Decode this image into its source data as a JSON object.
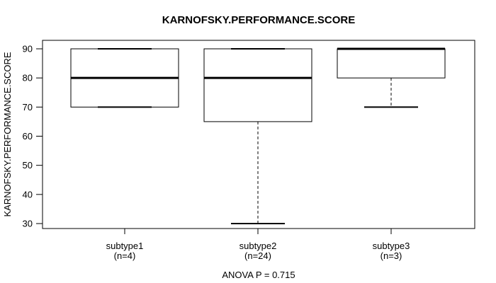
{
  "chart_data": {
    "type": "boxplot",
    "title": "KARNOFSKY.PERFORMANCE.SCORE",
    "ylabel": "KARNOFSKY.PERFORMANCE.SCORE",
    "xlabel": "",
    "ylim": [
      30,
      90
    ],
    "yticks": [
      90,
      80,
      70,
      60,
      50,
      40,
      30
    ],
    "ytick_labels": [
      "90",
      "80",
      "70",
      "60",
      "50",
      "40",
      "30"
    ],
    "grid": false,
    "frame": true,
    "legend_position": "none",
    "annotation": "ANOVA P = 0.715",
    "categories": [
      "subtype1",
      "subtype2",
      "subtype3"
    ],
    "groups": [
      {
        "label": "subtype1",
        "count_label": "(n=4)",
        "n": 4,
        "stats": {
          "min": 70,
          "q1": 70,
          "median": 80,
          "q3": 90,
          "max": 90
        }
      },
      {
        "label": "subtype2",
        "count_label": "(n=24)",
        "n": 24,
        "stats": {
          "min": 30,
          "q1": 65,
          "median": 80,
          "q3": 90,
          "max": 90
        }
      },
      {
        "label": "subtype3",
        "count_label": "(n=3)",
        "n": 3,
        "stats": {
          "min": 70,
          "q1": 80,
          "median": 90,
          "q3": 90,
          "max": 90
        }
      }
    ],
    "colors": {
      "line": "#000000",
      "box_fill": "#ffffff",
      "background": "#ffffff"
    }
  }
}
